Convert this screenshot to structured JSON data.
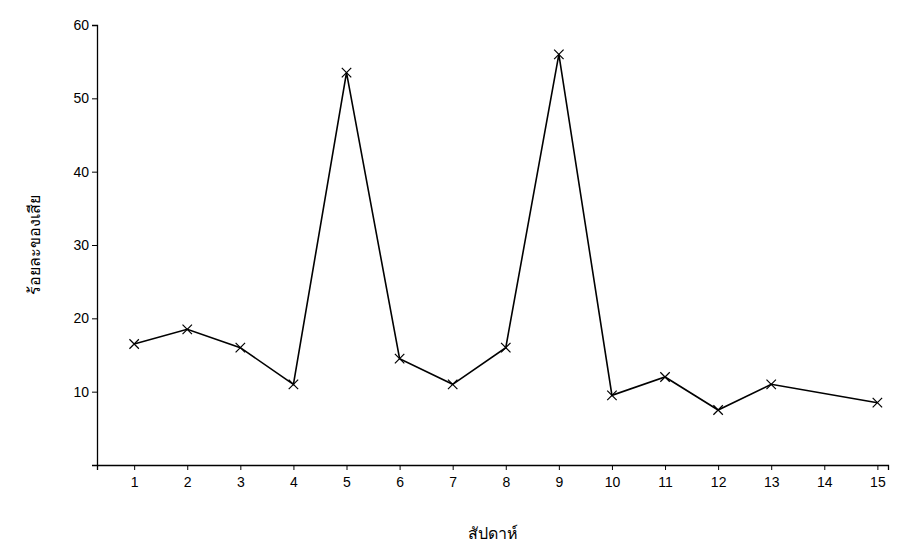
{
  "chart_data": {
    "type": "line",
    "x_label": "สัปดาห์",
    "y_label": "ร้อยละของเสีย",
    "x": [
      1,
      2,
      3,
      4,
      5,
      6,
      7,
      8,
      9,
      10,
      11,
      12,
      13,
      15
    ],
    "values": [
      16.5,
      18.5,
      16,
      11,
      53.5,
      14.5,
      11,
      16,
      56,
      9.5,
      12,
      7.5,
      11,
      8.5
    ],
    "xlim": [
      0.3,
      15.2
    ],
    "xticks": [
      1,
      2,
      3,
      4,
      5,
      6,
      7,
      8,
      9,
      10,
      11,
      12,
      13,
      14,
      15
    ],
    "ylim": [
      0,
      60
    ],
    "yticks": [
      10,
      20,
      30,
      40,
      50,
      60
    ],
    "color": "#000000",
    "marker": "x",
    "line_style": "solid",
    "grid": false
  }
}
